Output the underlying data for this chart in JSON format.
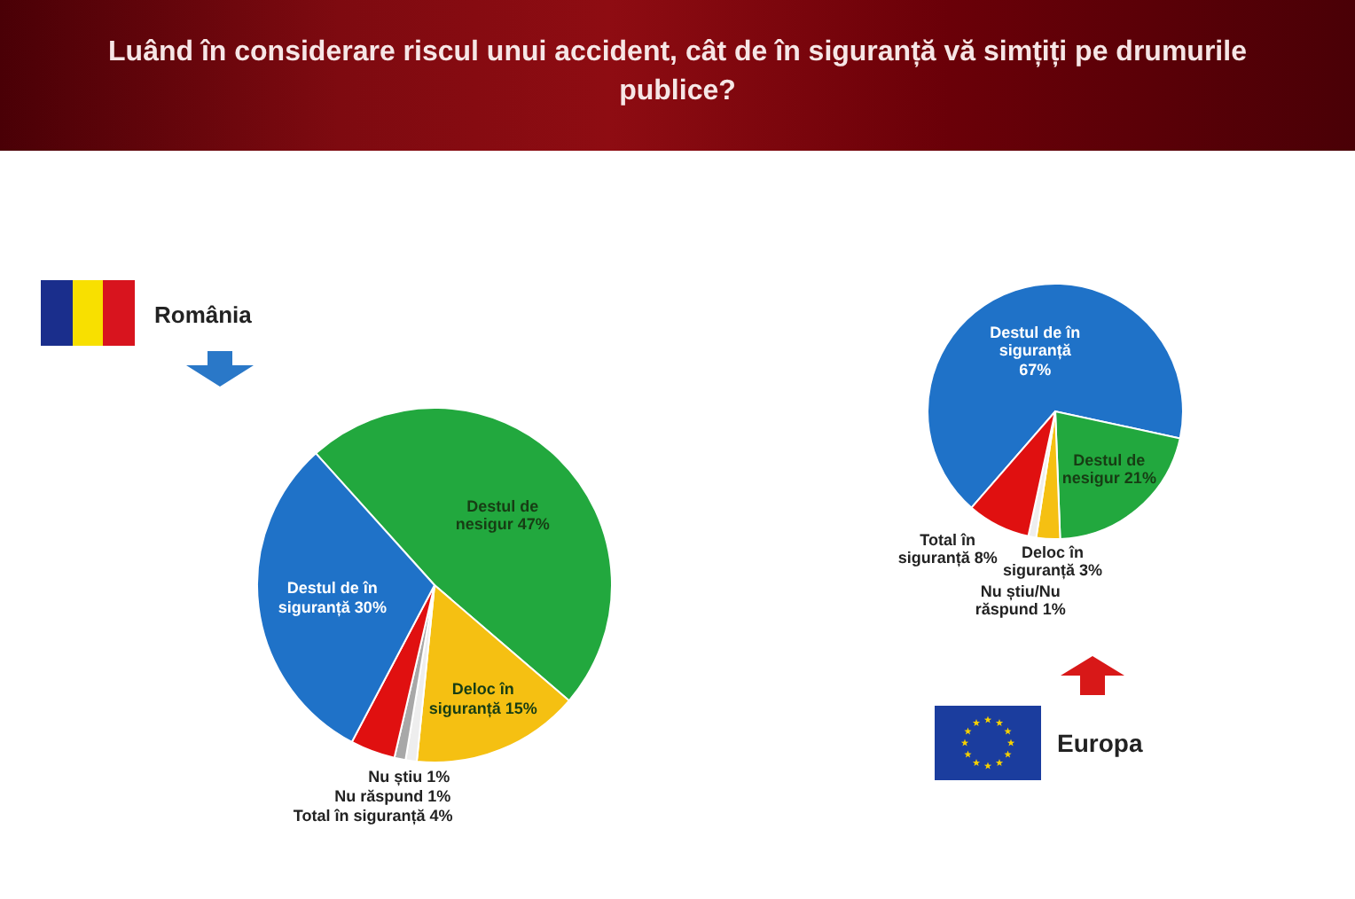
{
  "chart_data": [
    {
      "type": "pie",
      "title": "Luând în considerare riscul unui accident, cât de în siguranță vă simțiți pe drumurile publice?",
      "subtitle": "România",
      "categories": [
        "Destul de nesigur",
        "Deloc în siguranță",
        "Nu știu",
        "Nu răspund",
        "Total în siguranță",
        "Destul de în siguranță"
      ],
      "values": [
        47,
        15,
        1,
        1,
        4,
        30
      ],
      "value_labels": [
        "47%",
        "15%",
        "1%",
        "1%",
        "4%",
        "30%"
      ],
      "colors": [
        "#22a83e",
        "#f5c012",
        "#eeeeee",
        "#a8a8a8",
        "#e01010",
        "#1f72c8"
      ]
    },
    {
      "type": "pie",
      "subtitle": "Europa",
      "categories": [
        "Destul de în siguranță",
        "Destul de nesigur",
        "Deloc în siguranță",
        "Nu știu/Nu răspund",
        "Total în siguranță"
      ],
      "values": [
        67,
        21,
        3,
        1,
        8
      ],
      "value_labels": [
        "67%",
        "21%",
        "3%",
        "1%",
        "8%"
      ],
      "colors": [
        "#1f72c8",
        "#22a83e",
        "#f5c012",
        "#eeeeee",
        "#e01010"
      ]
    }
  ]
}
